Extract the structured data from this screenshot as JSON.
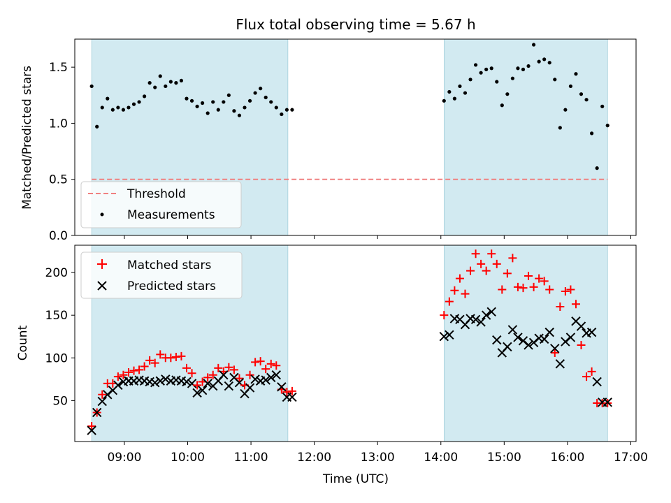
{
  "chart_data": [
    {
      "type": "scatter",
      "title": "Flux total observing time = 5.67 h",
      "ylabel": "Matched/Predicted stars",
      "xlim": [
        "08:13",
        "17:05"
      ],
      "ylim": [
        0.0,
        1.75
      ],
      "yticks": [
        0.0,
        0.5,
        1.0,
        1.5
      ],
      "ytick_labels": [
        "0.0",
        "0.5",
        "1.0",
        "1.5"
      ],
      "shaded_intervals": [
        [
          "08:29",
          "11:35"
        ],
        [
          "14:03",
          "16:38"
        ]
      ],
      "shade_color": "#add8e6",
      "threshold": 0.5,
      "threshold_color": "#f08080",
      "legend_position": "lower-left",
      "legend": [
        {
          "label": "Threshold",
          "style": "dashed-line",
          "color": "#f08080"
        },
        {
          "label": "Measurements",
          "style": "dot",
          "color": "#000000"
        }
      ],
      "series": [
        {
          "name": "Measurements",
          "color": "#000000",
          "marker": "dot",
          "x": [
            "08:29",
            "08:34",
            "08:39",
            "08:44",
            "08:49",
            "08:54",
            "08:59",
            "09:04",
            "09:09",
            "09:14",
            "09:19",
            "09:24",
            "09:29",
            "09:34",
            "09:39",
            "09:44",
            "09:49",
            "09:54",
            "09:59",
            "10:04",
            "10:09",
            "10:14",
            "10:19",
            "10:24",
            "10:29",
            "10:34",
            "10:39",
            "10:44",
            "10:49",
            "10:54",
            "10:59",
            "11:04",
            "11:09",
            "11:14",
            "11:19",
            "11:24",
            "11:29",
            "11:34",
            "11:39",
            "14:03",
            "14:08",
            "14:13",
            "14:18",
            "14:23",
            "14:28",
            "14:33",
            "14:38",
            "14:43",
            "14:48",
            "14:53",
            "14:58",
            "15:03",
            "15:08",
            "15:13",
            "15:18",
            "15:23",
            "15:28",
            "15:33",
            "15:38",
            "15:43",
            "15:48",
            "15:53",
            "15:58",
            "16:03",
            "16:08",
            "16:13",
            "16:18",
            "16:23",
            "16:28",
            "16:33",
            "16:38"
          ],
          "y": [
            1.33,
            0.97,
            1.14,
            1.22,
            1.12,
            1.14,
            1.12,
            1.14,
            1.17,
            1.19,
            1.24,
            1.36,
            1.32,
            1.42,
            1.33,
            1.37,
            1.36,
            1.38,
            1.22,
            1.2,
            1.15,
            1.18,
            1.09,
            1.19,
            1.12,
            1.19,
            1.25,
            1.11,
            1.07,
            1.14,
            1.2,
            1.27,
            1.31,
            1.23,
            1.19,
            1.14,
            1.08,
            1.12,
            1.12,
            1.2,
            1.28,
            1.22,
            1.33,
            1.27,
            1.39,
            1.52,
            1.45,
            1.48,
            1.49,
            1.37,
            1.16,
            1.26,
            1.4,
            1.49,
            1.48,
            1.51,
            1.7,
            1.55,
            1.57,
            1.54,
            1.39,
            0.96,
            1.12,
            1.33,
            1.44,
            1.26,
            1.21,
            0.91,
            0.6,
            1.15,
            0.98
          ]
        }
      ]
    },
    {
      "type": "scatter",
      "xlabel": "Time (UTC)",
      "ylabel": "Count",
      "xlim": [
        "08:13",
        "17:05"
      ],
      "ylim": [
        2,
        232
      ],
      "xticks": [
        "09:00",
        "10:00",
        "11:00",
        "12:00",
        "13:00",
        "14:00",
        "15:00",
        "16:00",
        "17:00"
      ],
      "yticks": [
        50,
        100,
        150,
        200
      ],
      "ytick_labels": [
        "50",
        "100",
        "150",
        "200"
      ],
      "shaded_intervals": [
        [
          "08:29",
          "11:35"
        ],
        [
          "14:03",
          "16:38"
        ]
      ],
      "shade_color": "#add8e6",
      "legend_position": "upper-left",
      "legend": [
        {
          "label": "Matched stars",
          "style": "plus",
          "color": "#ff0000"
        },
        {
          "label": "Predicted stars",
          "style": "cross",
          "color": "#000000"
        }
      ],
      "x": [
        "08:29",
        "08:34",
        "08:39",
        "08:44",
        "08:49",
        "08:54",
        "08:59",
        "09:04",
        "09:09",
        "09:14",
        "09:19",
        "09:24",
        "09:29",
        "09:34",
        "09:39",
        "09:44",
        "09:49",
        "09:54",
        "09:59",
        "10:04",
        "10:09",
        "10:14",
        "10:19",
        "10:24",
        "10:29",
        "10:34",
        "10:39",
        "10:44",
        "10:49",
        "10:54",
        "10:59",
        "11:04",
        "11:09",
        "11:14",
        "11:19",
        "11:24",
        "11:29",
        "11:34",
        "11:39",
        "14:03",
        "14:08",
        "14:13",
        "14:18",
        "14:23",
        "14:28",
        "14:33",
        "14:38",
        "14:43",
        "14:48",
        "14:53",
        "14:58",
        "15:03",
        "15:08",
        "15:13",
        "15:18",
        "15:23",
        "15:28",
        "15:33",
        "15:38",
        "15:43",
        "15:48",
        "15:53",
        "15:58",
        "16:03",
        "16:08",
        "16:13",
        "16:18",
        "16:23",
        "16:28",
        "16:33",
        "16:38"
      ],
      "series": [
        {
          "name": "Matched stars",
          "color": "#ff0000",
          "marker": "plus",
          "values": [
            20,
            36,
            57,
            70,
            70,
            78,
            80,
            83,
            85,
            86,
            90,
            97,
            94,
            104,
            100,
            100,
            101,
            102,
            88,
            82,
            68,
            72,
            77,
            80,
            88,
            84,
            89,
            86,
            76,
            68,
            80,
            95,
            96,
            87,
            93,
            91,
            63,
            60,
            61,
            150,
            166,
            179,
            193,
            175,
            202,
            222,
            210,
            202,
            222,
            210,
            180,
            199,
            217,
            183,
            182,
            196,
            183,
            193,
            190,
            180,
            106,
            160,
            178,
            180,
            163,
            115,
            78,
            84,
            47,
            47,
            47
          ]
        },
        {
          "name": "Predicted stars",
          "color": "#000000",
          "marker": "cross",
          "values": [
            15,
            36,
            49,
            57,
            62,
            68,
            72,
            73,
            73,
            74,
            73,
            72,
            71,
            73,
            75,
            73,
            74,
            73,
            72,
            70,
            59,
            62,
            70,
            67,
            73,
            80,
            67,
            77,
            71,
            58,
            65,
            75,
            73,
            74,
            77,
            80,
            66,
            54,
            54,
            125,
            127,
            146,
            145,
            139,
            146,
            145,
            142,
            150,
            154,
            121,
            106,
            113,
            133,
            124,
            120,
            115,
            118,
            123,
            122,
            130,
            111,
            93,
            119,
            124,
            143,
            137,
            129,
            130,
            72,
            48,
            48
          ]
        }
      ]
    }
  ]
}
